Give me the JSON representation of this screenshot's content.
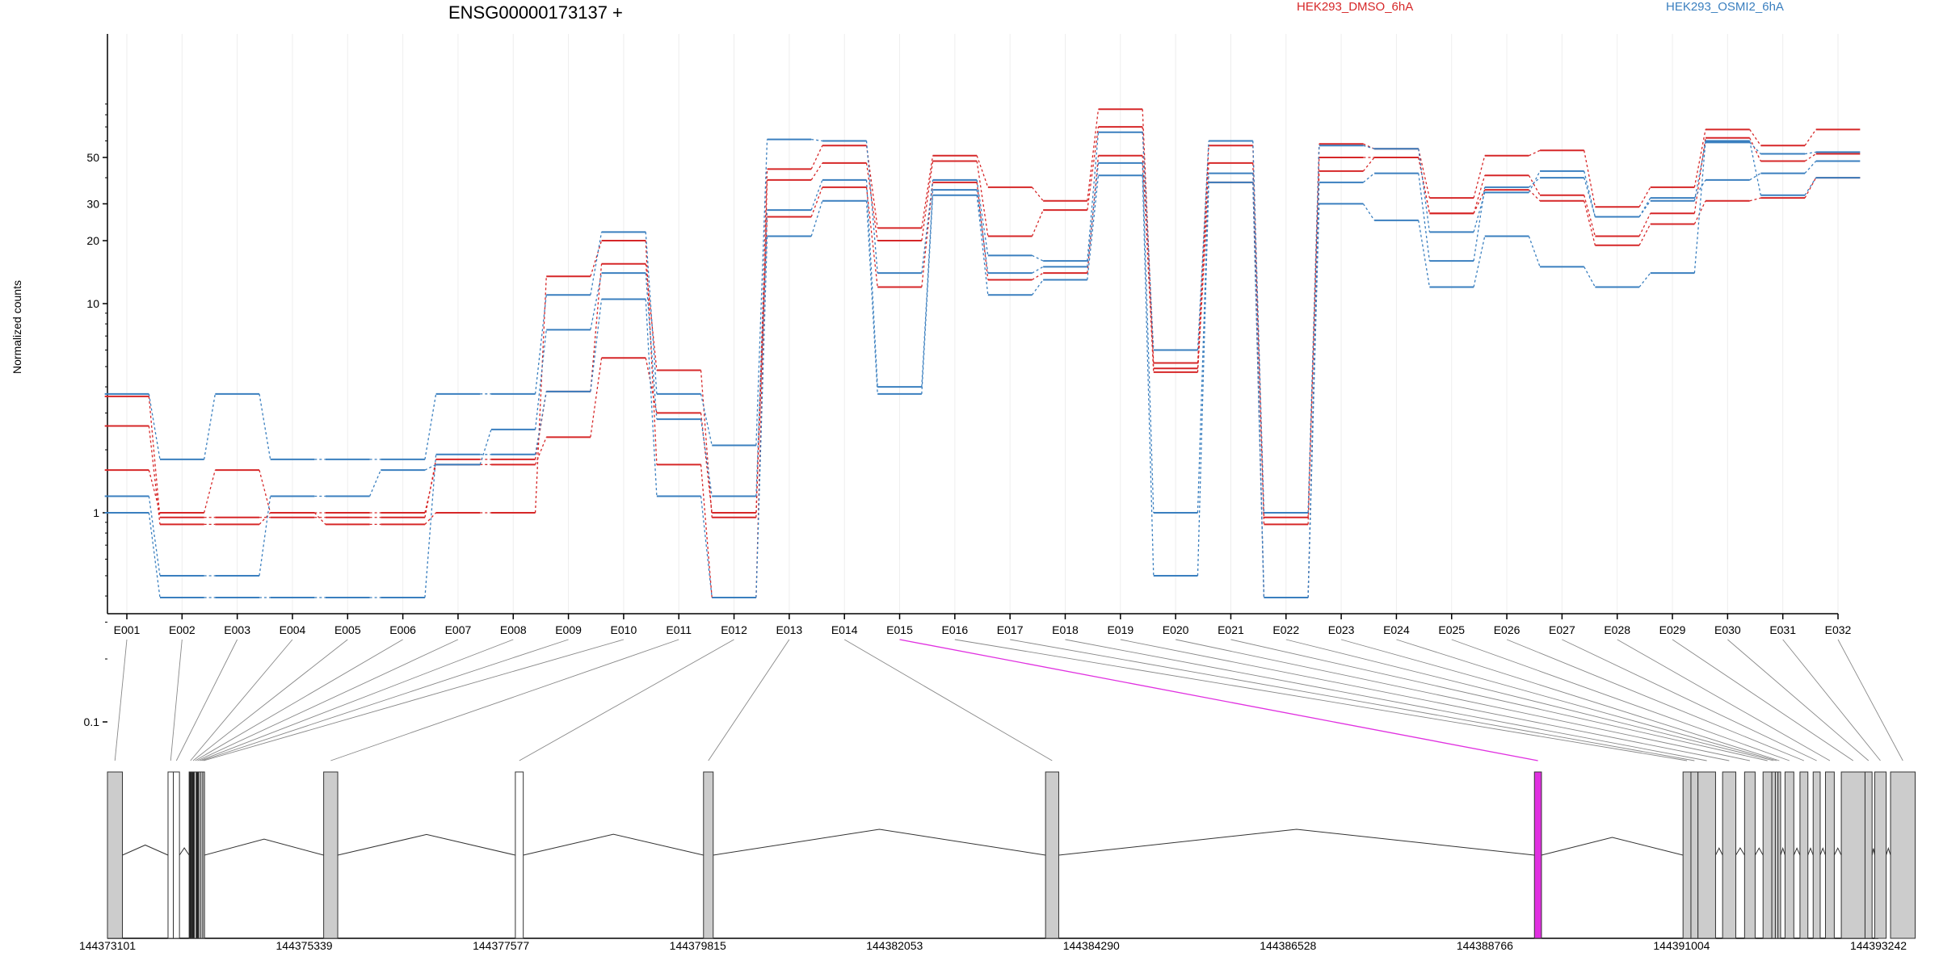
{
  "chart_data": {
    "type": "line",
    "title": "ENSG00000173137 +",
    "ylabel": "Normalized counts",
    "xlabel": "",
    "y_scale": "log",
    "y_ticks": [
      "0.1",
      "1",
      "10",
      "20",
      "30",
      "50"
    ],
    "categories": [
      "E001",
      "E002",
      "E003",
      "E004",
      "E005",
      "E006",
      "E007",
      "E008",
      "E009",
      "E010",
      "E011",
      "E012",
      "E013",
      "E014",
      "E015",
      "E016",
      "E017",
      "E018",
      "E019",
      "E020",
      "E021",
      "E022",
      "E023",
      "E024",
      "E025",
      "E026",
      "E027",
      "E028",
      "E029",
      "E030",
      "E031",
      "E032"
    ],
    "legend": [
      {
        "name": "HEK293_DMSO_6hA",
        "color": "#d62728"
      },
      {
        "name": "HEK293_OSMI2_6hA",
        "color": "#3a7fbf"
      }
    ],
    "series": [
      {
        "group": "HEK293_DMSO_6hA",
        "color": "#d62728",
        "values": [
          3.6,
          0.95,
          0.95,
          0.95,
          0.95,
          0.95,
          1.8,
          1.8,
          3.8,
          15.5,
          4.8,
          0.95,
          44,
          57,
          23,
          51,
          36,
          31,
          85,
          5.2,
          57,
          0.95,
          58,
          55,
          32,
          51,
          54,
          29,
          36,
          68,
          57,
          68
        ]
      },
      {
        "group": "HEK293_DMSO_6hA",
        "color": "#d62728",
        "values": [
          2.6,
          0.88,
          0.88,
          1.0,
          0.88,
          0.88,
          1.0,
          1.0,
          13.5,
          20,
          1.7,
          0.0,
          39,
          47,
          20,
          48,
          21,
          28,
          70,
          4.9,
          47,
          0.88,
          50,
          50,
          27,
          41,
          33,
          21,
          27,
          62,
          48,
          52
        ]
      },
      {
        "group": "HEK293_DMSO_6hA",
        "color": "#d62728",
        "values": [
          1.6,
          1.0,
          1.6,
          1.0,
          1.0,
          1.0,
          1.7,
          1.7,
          2.3,
          5.5,
          3.0,
          1.0,
          26,
          36,
          12,
          38,
          13,
          14,
          51,
          4.7,
          38,
          0.0,
          43,
          50,
          27,
          35,
          31,
          19,
          24,
          31,
          32,
          40
        ]
      },
      {
        "group": "HEK293_OSMI2_6hA",
        "color": "#3a7fbf",
        "values": [
          3.7,
          1.8,
          3.7,
          1.8,
          1.8,
          1.8,
          3.7,
          3.7,
          11,
          22,
          3.7,
          2.1,
          61,
          60,
          14,
          39,
          17,
          16,
          66,
          6.0,
          60,
          1.0,
          57,
          55,
          22,
          34,
          43,
          26,
          31,
          59,
          52,
          53
        ]
      },
      {
        "group": "HEK293_OSMI2_6hA",
        "color": "#3a7fbf",
        "values": [
          1.2,
          0.5,
          0.5,
          1.2,
          1.2,
          1.6,
          1.7,
          2.5,
          7.5,
          14,
          2.8,
          1.2,
          28,
          39,
          4.0,
          35,
          14,
          15,
          47,
          1.0,
          42,
          0.0,
          38,
          42,
          16,
          36,
          40,
          26,
          32,
          39,
          42,
          48
        ]
      },
      {
        "group": "HEK293_OSMI2_6hA",
        "color": "#3a7fbf",
        "values": [
          1.0,
          0.0,
          0.0,
          0.0,
          0.0,
          0.0,
          1.9,
          1.9,
          3.8,
          10.5,
          1.2,
          0.0,
          21,
          31,
          3.7,
          33,
          11,
          13,
          41,
          0.5,
          38,
          0.0,
          30,
          25,
          12,
          21,
          15,
          12,
          14,
          60,
          33,
          40
        ]
      }
    ],
    "gene_model": {
      "coord_ticks": [
        "144373101",
        "144375339",
        "144377577",
        "144379815",
        "144382053",
        "144384290",
        "144386528",
        "144388766",
        "144391004",
        "144393242"
      ],
      "coord_range": [
        144373101,
        144393242
      ],
      "highlighted_exon": "E015",
      "highlight_color": "#e030e0",
      "exons": [
        {
          "id": "E001",
          "start": 144373101,
          "end": 144373271,
          "fill": "#cccccc"
        },
        {
          "id": "E002",
          "start": 144373790,
          "end": 144373850,
          "fill": "#ffffff"
        },
        {
          "id": "E003",
          "start": 144373850,
          "end": 144373920,
          "fill": "#ffffff"
        },
        {
          "id": "E004",
          "start": 144374030,
          "end": 144374060,
          "fill": "#222222"
        },
        {
          "id": "E005",
          "start": 144374060,
          "end": 144374090,
          "fill": "#222222"
        },
        {
          "id": "E006",
          "start": 144374090,
          "end": 144374110,
          "fill": "#ffffff"
        },
        {
          "id": "E007",
          "start": 144374110,
          "end": 144374140,
          "fill": "#222222"
        },
        {
          "id": "E008",
          "start": 144374140,
          "end": 144374160,
          "fill": "#ffffff"
        },
        {
          "id": "E009",
          "start": 144374160,
          "end": 144374185,
          "fill": "#cccccc"
        },
        {
          "id": "E010",
          "start": 144374185,
          "end": 144374205,
          "fill": "#cccccc"
        },
        {
          "id": "E011",
          "start": 144375560,
          "end": 144375720,
          "fill": "#cccccc"
        },
        {
          "id": "E012",
          "start": 144377740,
          "end": 144377830,
          "fill": "#ffffff"
        },
        {
          "id": "E013",
          "start": 144379880,
          "end": 144379990,
          "fill": "#cccccc"
        },
        {
          "id": "E014",
          "start": 144383770,
          "end": 144383920,
          "fill": "#cccccc"
        },
        {
          "id": "E015",
          "start": 144389330,
          "end": 144389410,
          "fill": "#e030e0"
        },
        {
          "id": "E016",
          "start": 144391020,
          "end": 144391110,
          "fill": "#cccccc"
        },
        {
          "id": "E017",
          "start": 144391110,
          "end": 144391190,
          "fill": "#cccccc"
        },
        {
          "id": "E018",
          "start": 144391190,
          "end": 144391390,
          "fill": "#cccccc"
        },
        {
          "id": "E019",
          "start": 144391470,
          "end": 144391620,
          "fill": "#cccccc"
        },
        {
          "id": "E020",
          "start": 144391720,
          "end": 144391840,
          "fill": "#cccccc"
        },
        {
          "id": "E021",
          "start": 144391930,
          "end": 144392030,
          "fill": "#cccccc"
        },
        {
          "id": "E022",
          "start": 144392030,
          "end": 144392070,
          "fill": "#cccccc"
        },
        {
          "id": "E023",
          "start": 144392070,
          "end": 144392100,
          "fill": "#cccccc"
        },
        {
          "id": "E024",
          "start": 144392100,
          "end": 144392130,
          "fill": "#cccccc"
        },
        {
          "id": "E025",
          "start": 144392180,
          "end": 144392280,
          "fill": "#cccccc"
        },
        {
          "id": "E026",
          "start": 144392350,
          "end": 144392440,
          "fill": "#cccccc"
        },
        {
          "id": "E027",
          "start": 144392500,
          "end": 144392580,
          "fill": "#cccccc"
        },
        {
          "id": "E028",
          "start": 144392640,
          "end": 144392740,
          "fill": "#cccccc"
        },
        {
          "id": "E029",
          "start": 144392820,
          "end": 144393090,
          "fill": "#cccccc"
        },
        {
          "id": "E030",
          "start": 144393090,
          "end": 144393170,
          "fill": "#cccccc"
        },
        {
          "id": "E031",
          "start": 144393200,
          "end": 144393330,
          "fill": "#cccccc"
        },
        {
          "id": "E032",
          "start": 144393380,
          "end": 144393660,
          "fill": "#cccccc"
        }
      ]
    }
  }
}
